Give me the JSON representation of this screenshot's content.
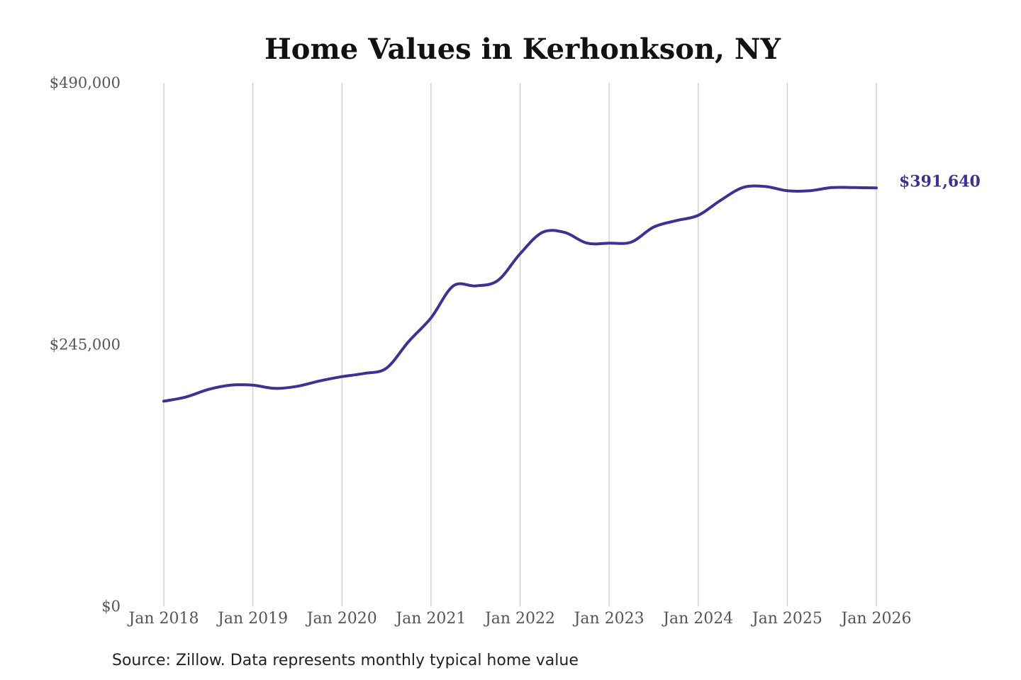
{
  "colors": {
    "line": "#3a3391",
    "background": "#ffffff"
  },
  "source_note": "Source: Zillow. Data represents monthly typical home value",
  "chart_data": {
    "type": "line",
    "title": "Home Values in Kerhonkson, NY",
    "xlabel": "",
    "ylabel": "",
    "ylim": [
      0,
      490000
    ],
    "y_ticks": [
      0,
      245000,
      490000
    ],
    "y_tick_labels": [
      "$0",
      "$245,000",
      "$490,000"
    ],
    "x_range": [
      "2018-01",
      "2026-01"
    ],
    "x_ticks": [
      "2018-01",
      "2019-01",
      "2020-01",
      "2021-01",
      "2022-01",
      "2023-01",
      "2024-01",
      "2025-01",
      "2026-01"
    ],
    "x_tick_labels": [
      "Jan 2018",
      "Jan 2019",
      "Jan 2020",
      "Jan 2021",
      "Jan 2022",
      "Jan 2023",
      "Jan 2024",
      "Jan 2025",
      "Jan 2026"
    ],
    "grid": "vertical",
    "legend": "none",
    "end_label": "$391,640",
    "series": [
      {
        "points": [
          [
            "2018-01",
            192000
          ],
          [
            "2018-04",
            196000
          ],
          [
            "2018-07",
            203000
          ],
          [
            "2018-10",
            207000
          ],
          [
            "2019-01",
            207000
          ],
          [
            "2019-04",
            204000
          ],
          [
            "2019-07",
            206000
          ],
          [
            "2019-10",
            211000
          ],
          [
            "2020-01",
            215000
          ],
          [
            "2020-04",
            218000
          ],
          [
            "2020-07",
            223000
          ],
          [
            "2020-10",
            248000
          ],
          [
            "2021-01",
            270000
          ],
          [
            "2021-04",
            300000
          ],
          [
            "2021-07",
            300000
          ],
          [
            "2021-10",
            305000
          ],
          [
            "2022-01",
            330000
          ],
          [
            "2022-04",
            350000
          ],
          [
            "2022-07",
            350000
          ],
          [
            "2022-10",
            340000
          ],
          [
            "2023-01",
            340000
          ],
          [
            "2023-04",
            341000
          ],
          [
            "2023-07",
            355000
          ],
          [
            "2023-10",
            361000
          ],
          [
            "2024-01",
            366000
          ],
          [
            "2024-04",
            380000
          ],
          [
            "2024-07",
            392000
          ],
          [
            "2024-10",
            393000
          ],
          [
            "2025-01",
            389000
          ],
          [
            "2025-04",
            389000
          ],
          [
            "2025-07",
            392000
          ],
          [
            "2025-10",
            392000
          ],
          [
            "2026-01",
            391640
          ]
        ]
      }
    ]
  }
}
